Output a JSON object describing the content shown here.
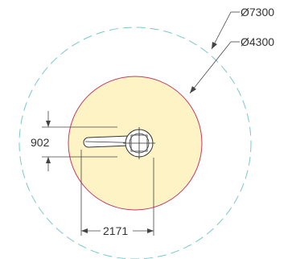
{
  "drawing": {
    "outer_diameter_label": "Ø7300",
    "inner_diameter_label": "Ø4300",
    "vertical_dimension": "902",
    "horizontal_dimension": "2171"
  },
  "colors": {
    "background": "#ffffff",
    "work_area_fill": "#fdf3c4",
    "work_area_stroke": "#c23a6a",
    "outer_circle_stroke": "#7cc8c8",
    "dimension_line": "#444444",
    "machine_stroke": "#333333",
    "machine_fill": "#ffffff"
  }
}
